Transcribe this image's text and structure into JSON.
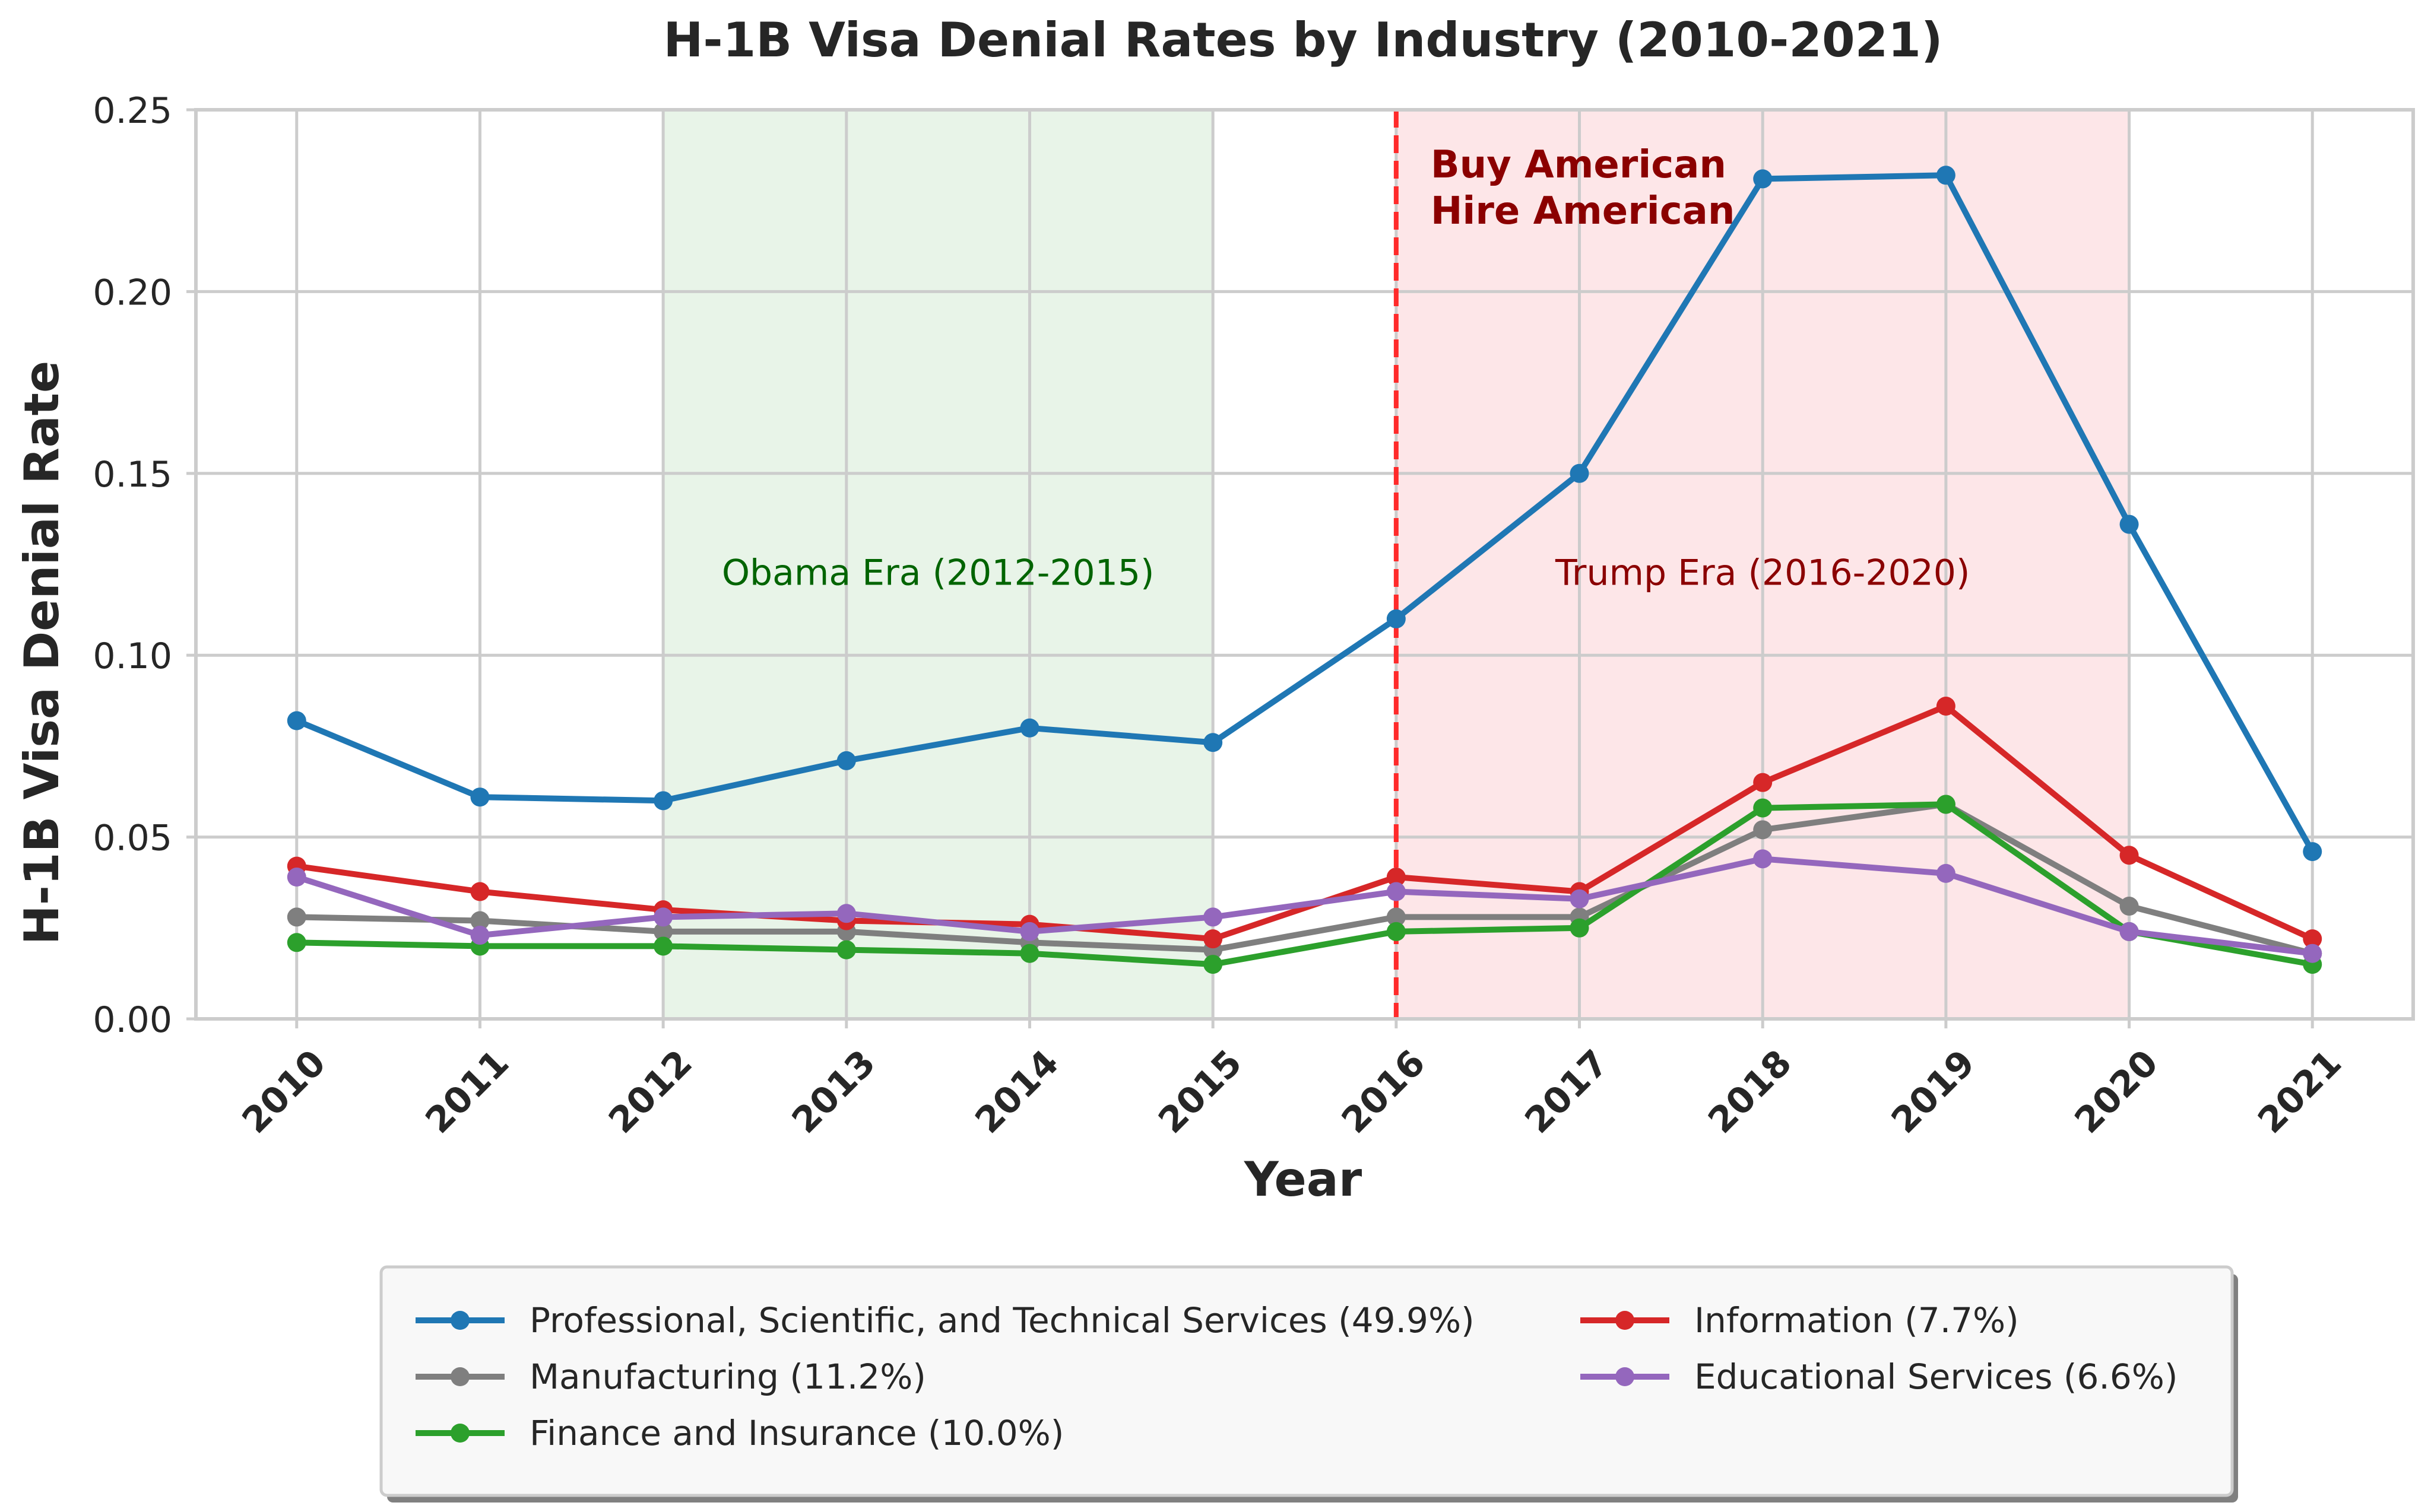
{
  "chart_data": {
    "type": "line",
    "title": "H-1B Visa Denial Rates by Industry (2010-2021)",
    "xlabel": "Year",
    "ylabel": "H-1B Visa Denial Rate",
    "x": [
      2010,
      2011,
      2012,
      2013,
      2014,
      2015,
      2016,
      2017,
      2018,
      2019,
      2020,
      2021
    ],
    "x_tick_labels": [
      "2010",
      "2011",
      "2012",
      "2013",
      "2014",
      "2015",
      "2016",
      "2017",
      "2018",
      "2019",
      "2020",
      "2021"
    ],
    "xlim": [
      2009.45,
      2021.55
    ],
    "ylim": [
      0,
      0.25
    ],
    "y_ticks": [
      0,
      0.05,
      0.1,
      0.15,
      0.2,
      0.25
    ],
    "y_tick_labels": [
      "0.00",
      "0.05",
      "0.10",
      "0.15",
      "0.20",
      "0.25"
    ],
    "grid": true,
    "legend_placement": "bottom-center, below plot",
    "series": [
      {
        "name": "Professional, Scientific, and Technical Services (49.9%)",
        "color": "#1f77b4",
        "values": [
          0.082,
          0.061,
          0.06,
          0.071,
          0.08,
          0.076,
          0.11,
          0.15,
          0.231,
          0.232,
          0.136,
          0.046
        ]
      },
      {
        "name": "Manufacturing (11.2%)",
        "color": "#7f7f7f",
        "values": [
          0.028,
          0.027,
          0.024,
          0.024,
          0.021,
          0.019,
          0.028,
          0.028,
          0.052,
          0.059,
          0.031,
          0.018
        ]
      },
      {
        "name": "Finance and Insurance (10.0%)",
        "color": "#2ca02c",
        "values": [
          0.021,
          0.02,
          0.02,
          0.019,
          0.018,
          0.015,
          0.024,
          0.025,
          0.058,
          0.059,
          0.024,
          0.015
        ]
      },
      {
        "name": "Information (7.7%)",
        "color": "#d62728",
        "values": [
          0.042,
          0.035,
          0.03,
          0.027,
          0.026,
          0.022,
          0.039,
          0.035,
          0.065,
          0.086,
          0.045,
          0.022
        ]
      },
      {
        "name": "Educational Services (6.6%)",
        "color": "#9467bd",
        "values": [
          0.039,
          0.023,
          0.028,
          0.029,
          0.024,
          0.028,
          0.035,
          0.033,
          0.044,
          0.04,
          0.024,
          0.018
        ]
      }
    ],
    "legend_order": [
      0,
      3,
      1,
      4,
      2
    ],
    "spans": [
      {
        "label": "Obama Era (2012-2015)",
        "x_start": 2012,
        "x_end": 2015,
        "fill": "#e8f4e8",
        "text_color": "#006400",
        "label_y": 0.123
      },
      {
        "label": "Trump Era (2016-2020)",
        "x_start": 2016,
        "x_end": 2020,
        "fill": "#fde6e8",
        "text_color": "#8b0000",
        "label_y": 0.123
      }
    ],
    "vline": {
      "x": 2016,
      "color": "#ff2a2a"
    },
    "annotations": [
      {
        "text_lines": [
          "Buy American",
          "Hire American"
        ],
        "x": 2016,
        "y": 0.235,
        "color": "#8b0000"
      }
    ]
  }
}
